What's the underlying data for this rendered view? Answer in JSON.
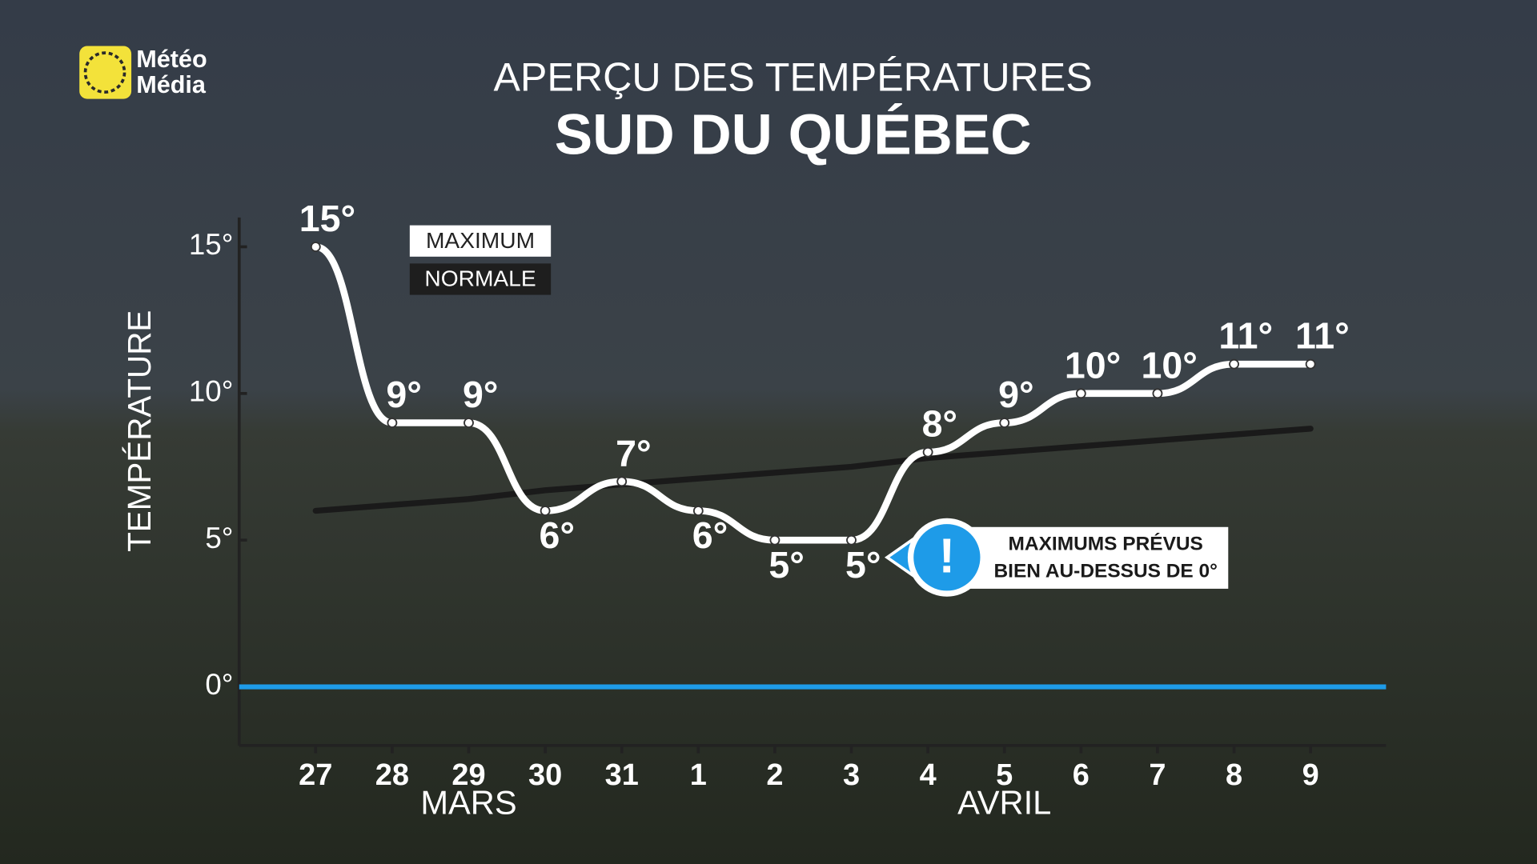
{
  "logo": [
    "Météo",
    "Média"
  ],
  "chart_data": {
    "type": "line",
    "title": "APERÇU DES TEMPÉRATURES",
    "subtitle": "SUD DU QUÉBEC",
    "y_label": "TEMPÉRATURE",
    "categories": [
      "27",
      "28",
      "29",
      "30",
      "31",
      "1",
      "2",
      "3",
      "4",
      "5",
      "6",
      "7",
      "8",
      "9"
    ],
    "month_groups": [
      {
        "label": "MARS",
        "span": 5
      },
      {
        "label": "AVRIL",
        "span": 9
      }
    ],
    "series": [
      {
        "name": "MAXIMUM",
        "color": "#ffffff",
        "values": [
          15,
          9,
          9,
          6,
          7,
          6,
          5,
          5,
          8,
          9,
          10,
          10,
          11,
          11
        ],
        "value_labels": [
          "15°",
          "9°",
          "9°",
          "6°",
          "7°",
          "6°",
          "5°",
          "5°",
          "8°",
          "9°",
          "10°",
          "10°",
          "11°",
          "11°"
        ]
      },
      {
        "name": "NORMALE",
        "color": "#1a1a1a",
        "values": [
          6.0,
          6.2,
          6.4,
          6.7,
          6.9,
          7.1,
          7.3,
          7.5,
          7.8,
          8.0,
          8.2,
          8.4,
          8.6,
          8.8
        ]
      }
    ],
    "ylim": [
      -2,
      16
    ],
    "yticks": [
      {
        "value": 0,
        "label": "0°"
      },
      {
        "value": 5,
        "label": "5°"
      },
      {
        "value": 10,
        "label": "10°"
      },
      {
        "value": 15,
        "label": "15°"
      }
    ],
    "reference_line": {
      "value": 0,
      "color": "#1e9be8"
    },
    "annotation": {
      "icon_text": "!",
      "lines": [
        "MAXIMUMS PRÉVUS",
        "BIEN AU-DESSUS DE 0°"
      ]
    }
  }
}
